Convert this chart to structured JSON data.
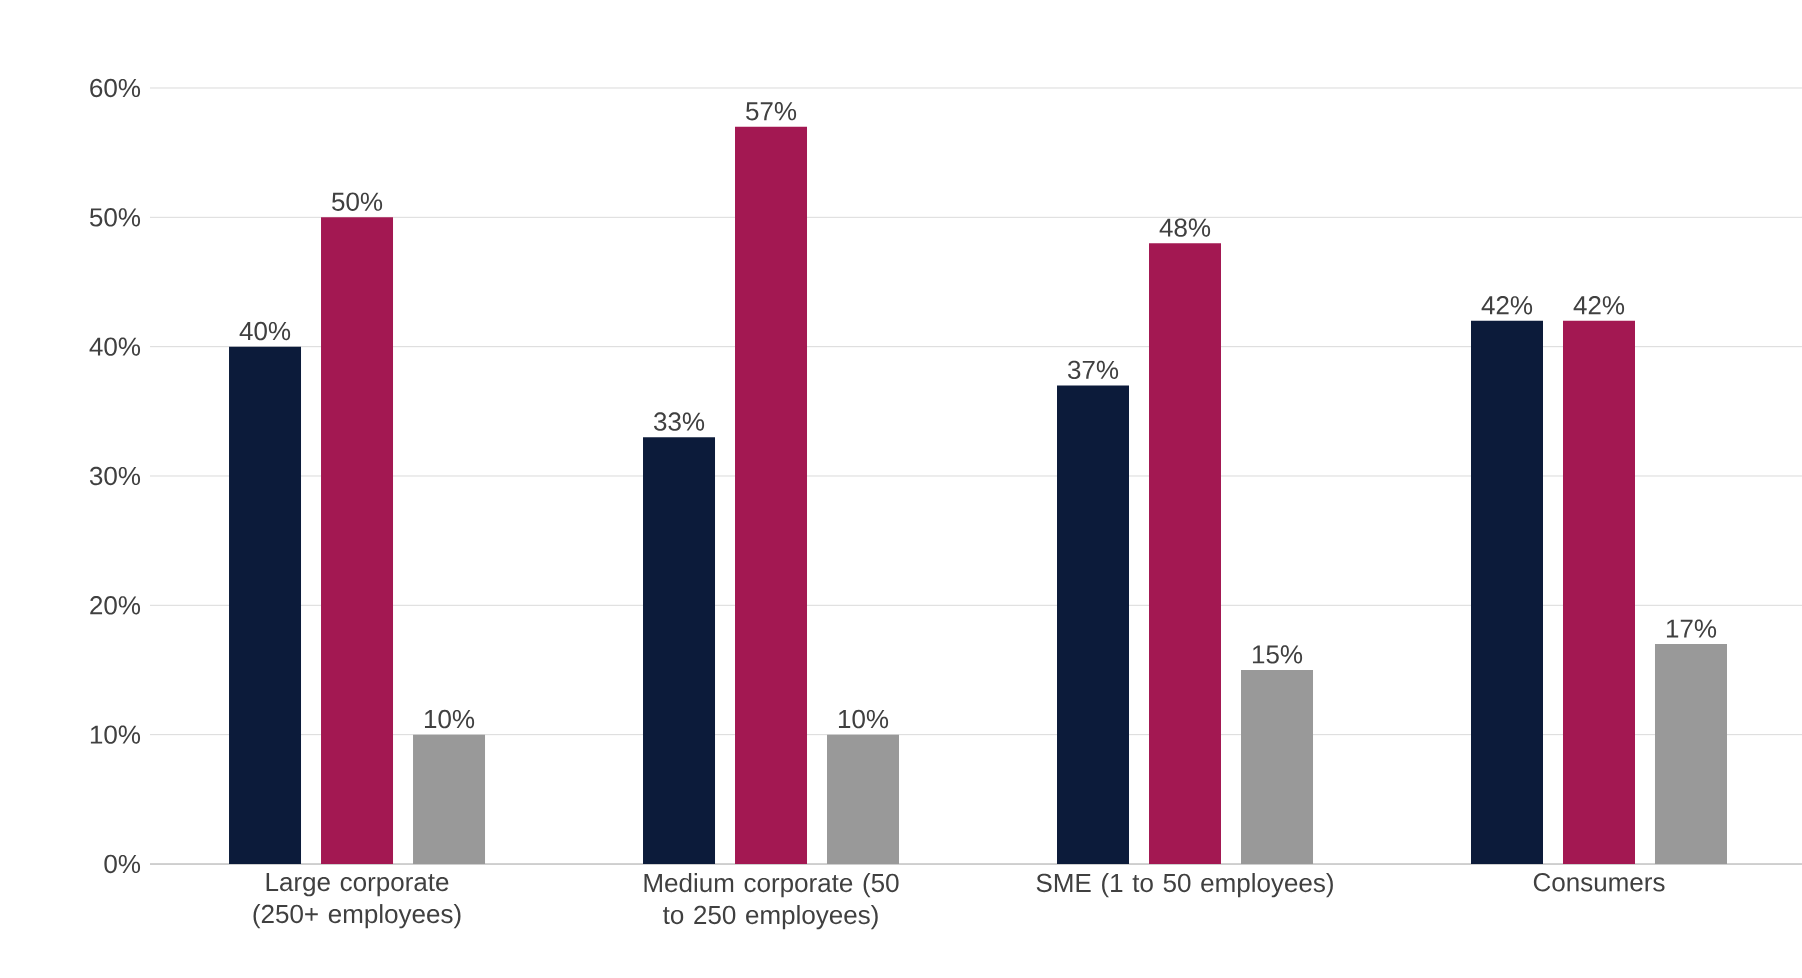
{
  "chart_data": {
    "type": "bar",
    "categories": [
      "Large corporate (250+ employees)",
      "Medium corporate (50 to 250 employees)",
      "SME (1 to 50 employees)",
      "Consumers"
    ],
    "series": [
      {
        "color": "#0c1b3a",
        "values": [
          40,
          33,
          37,
          42
        ],
        "value_labels": [
          "40%",
          "33%",
          "37%",
          "42%"
        ]
      },
      {
        "color": "#a31852",
        "values": [
          50,
          57,
          48,
          42
        ],
        "value_labels": [
          "50%",
          "57%",
          "48%",
          "42%"
        ]
      },
      {
        "color": "#999999",
        "values": [
          10,
          10,
          15,
          17
        ],
        "value_labels": [
          "10%",
          "10%",
          "15%",
          "17%"
        ]
      }
    ],
    "ylim": [
      0,
      60
    ],
    "yticks": [
      {
        "value": 0,
        "label": "0%"
      },
      {
        "value": 10,
        "label": "10%"
      },
      {
        "value": 20,
        "label": "20%"
      },
      {
        "value": 30,
        "label": "30%"
      },
      {
        "value": 40,
        "label": "40%"
      },
      {
        "value": 50,
        "label": "50%"
      },
      {
        "value": 60,
        "label": "60%"
      }
    ],
    "grid": "y"
  }
}
